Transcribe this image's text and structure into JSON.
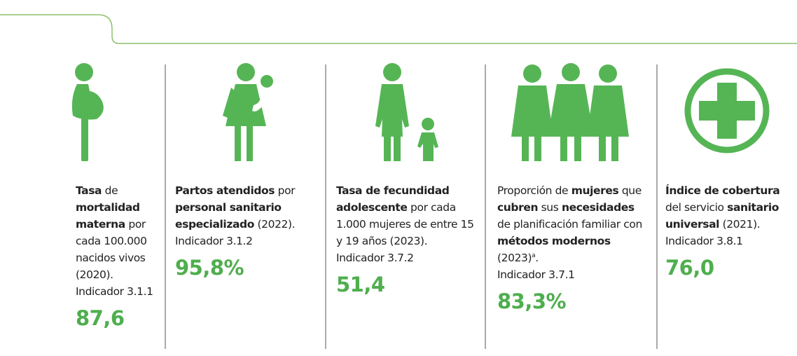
{
  "panels": [
    {
      "description": [
        {
          "text": "Tasa",
          "bold": true
        },
        {
          "text": " de ",
          "bold": false
        },
        {
          "text": "mortalidad materna",
          "bold": true
        },
        {
          "text": " por cada 100.000 nacidos vivos (2020).",
          "bold": false
        }
      ],
      "indicator": "Indicador 3.1.1",
      "value": "87,6"
    },
    {
      "description": [
        {
          "text": "Partos atendidos",
          "bold": true
        },
        {
          "text": " por ",
          "bold": false
        },
        {
          "text": "personal sanitario especializado",
          "bold": true
        },
        {
          "text": " (2022).",
          "bold": false
        }
      ],
      "indicator": "Indicador 3.1.2",
      "value": "95,8%"
    },
    {
      "description": [
        {
          "text": "Tasa de fecundidad adolescente",
          "bold": true
        },
        {
          "text": " por cada 1.000 mujeres de entre 15 y 19 años (2023).",
          "bold": false
        }
      ],
      "indicator": "Indicador 3.7.2",
      "value": "51,4"
    },
    {
      "description": [
        {
          "text": "Proporción de ",
          "bold": false
        },
        {
          "text": "mujeres",
          "bold": true
        },
        {
          "text": " que ",
          "bold": false
        },
        {
          "text": "cubren",
          "bold": true
        },
        {
          "text": " sus ",
          "bold": false
        },
        {
          "text": "necesidades",
          "bold": true
        },
        {
          "text": " de planificación familiar con ",
          "bold": false
        },
        {
          "text": "métodos modernos",
          "bold": true
        },
        {
          "text": " (2023)",
          "bold": false
        },
        {
          "text": "a",
          "sup": true
        },
        {
          "text": ".",
          "bold": false
        }
      ],
      "indicator": "Indicador 3.7.1",
      "value": "83,3%"
    },
    {
      "description": [
        {
          "text": "Índice de cobertura",
          "bold": true
        },
        {
          "text": " del servicio ",
          "bold": false
        },
        {
          "text": "sanitario universal",
          "bold": true
        },
        {
          "text": " (2021).",
          "bold": false
        }
      ],
      "indicator": "Indicador 3.8.1",
      "value": "76,0"
    }
  ]
}
